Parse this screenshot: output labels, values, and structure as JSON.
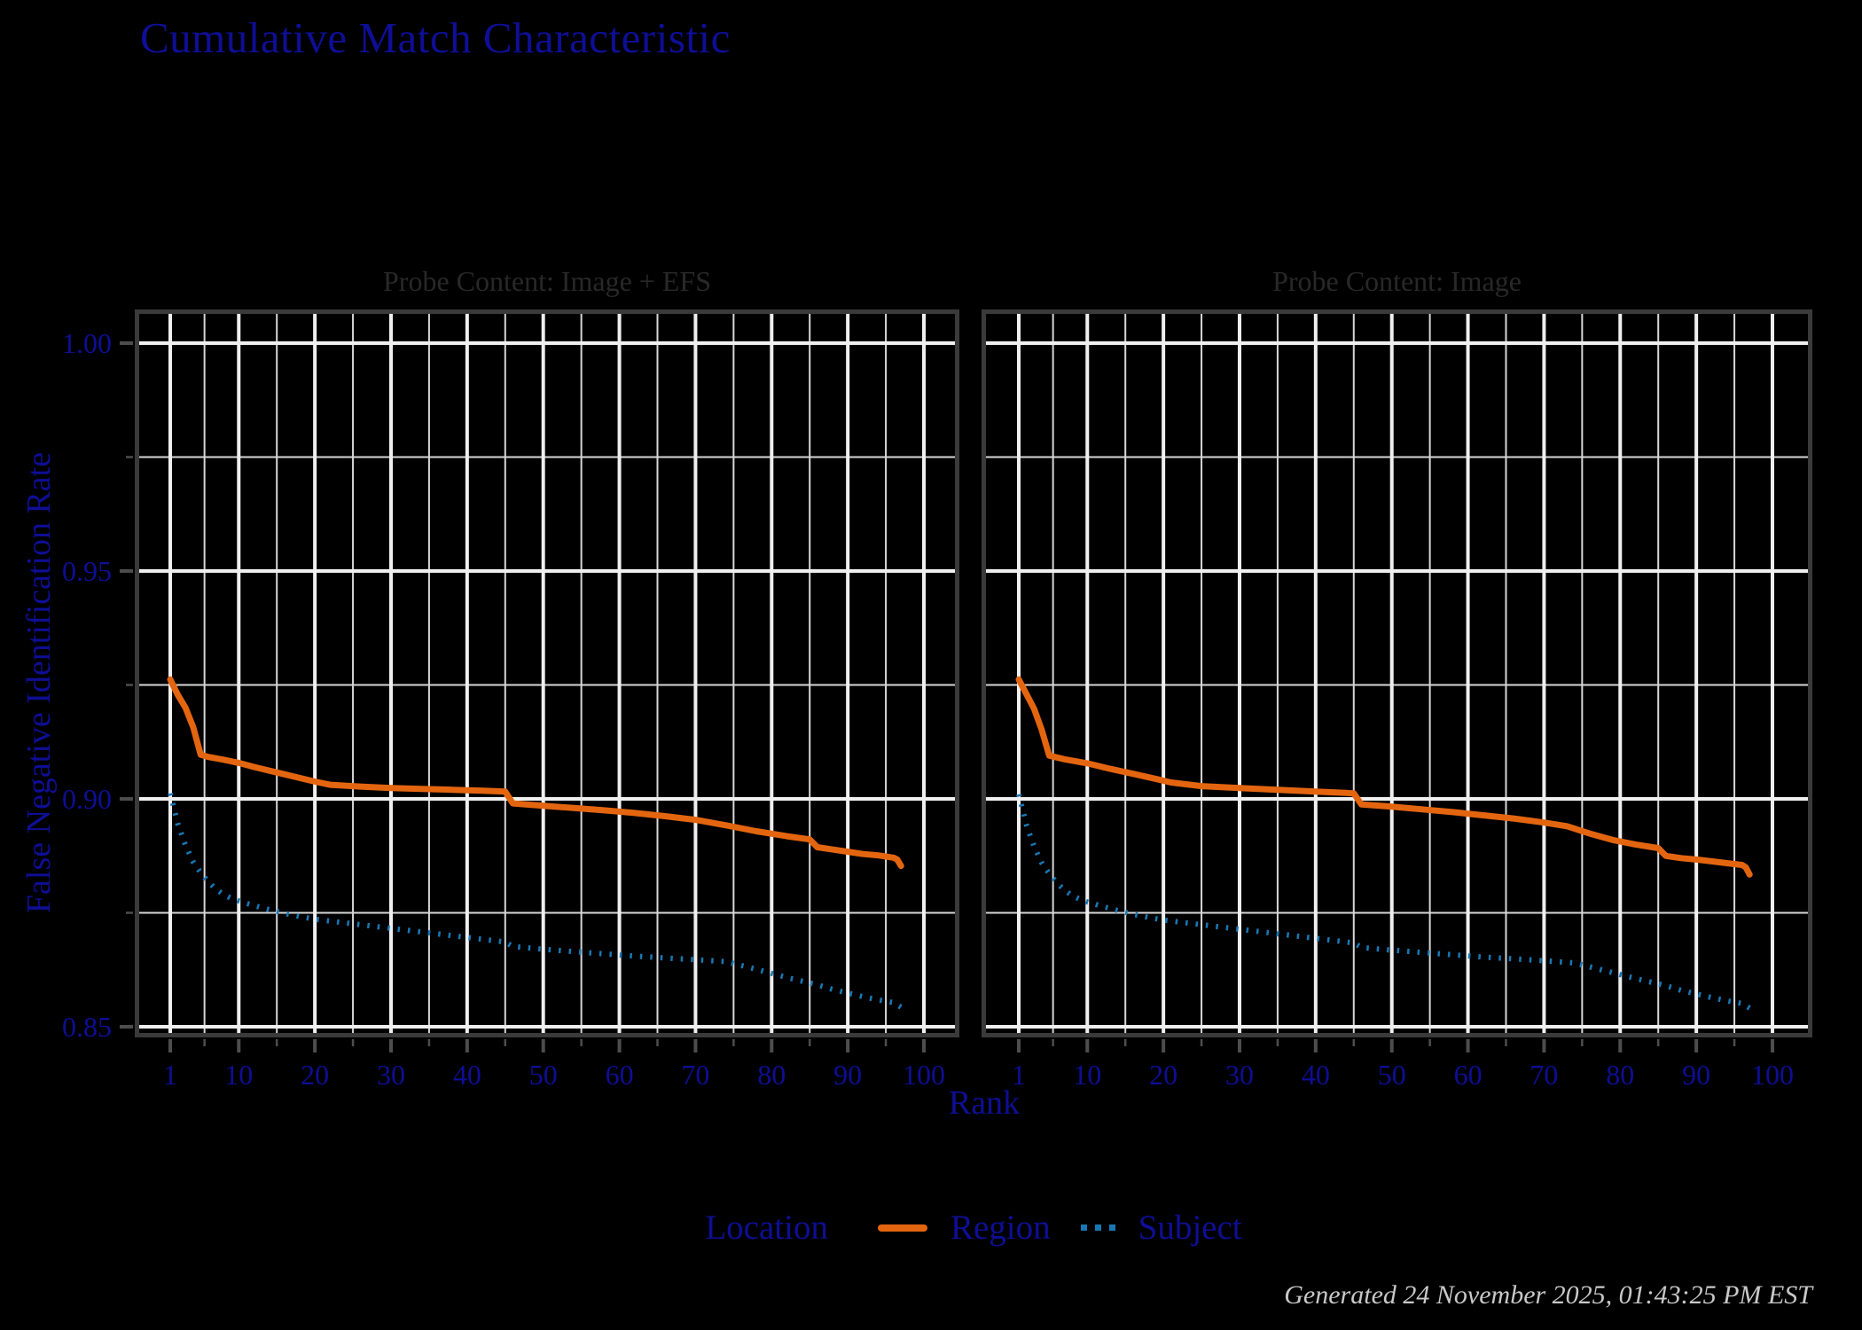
{
  "title": "Cumulative Match Characteristic",
  "footer": {
    "generated": "Generated 24 November 2025, 01:43:25 PM EST"
  },
  "legend": {
    "title": "Location",
    "entries": [
      {
        "label": "Region",
        "style": "solid",
        "color": "#E4650F"
      },
      {
        "label": "Subject",
        "style": "dotted",
        "color": "#1878B4"
      }
    ]
  },
  "colors": {
    "background": "#000000",
    "axis_text": "#0E0E96",
    "panel_title_text": "#282828",
    "grid_major": "#EFEFEF",
    "grid_minor": "#D7D7D7",
    "panel_border": "#3A3A3A",
    "tick": "#4D4D4D",
    "footer_text": "#C8C8C8",
    "region": "#E4650F",
    "subject": "#1878B4"
  },
  "chart_data": {
    "type": "line",
    "title": "Cumulative Match Characteristic",
    "xlabel": "Rank",
    "ylabel": "False Negative Identification Rate",
    "xlim": [
      1,
      100
    ],
    "ylim": [
      0.85,
      1.0
    ],
    "grid": true,
    "legend_position": "bottom",
    "x_major_ticks": [
      1,
      10,
      20,
      30,
      40,
      50,
      60,
      70,
      80,
      90,
      100
    ],
    "x_major_tick_labels": [
      "1",
      "10",
      "20",
      "30",
      "40",
      "50",
      "60",
      "70",
      "80",
      "90",
      "100"
    ],
    "x_minor_ticks": [
      5.5,
      15,
      25,
      35,
      45,
      55,
      65,
      75,
      85,
      95
    ],
    "y_major_ticks": [
      0.85,
      0.9,
      0.95,
      1.0
    ],
    "y_major_tick_labels": [
      "0.85",
      "0.90",
      "0.95",
      "1.00"
    ],
    "y_minor_ticks": [
      0.875,
      0.925,
      0.975
    ],
    "panels": [
      {
        "title": "Probe Content: Image + EFS",
        "series": [
          {
            "name": "Region",
            "style": "solid",
            "color": "#E4650F",
            "points": [
              [
                1,
                0.9262
              ],
              [
                2,
                0.9228
              ],
              [
                3,
                0.92
              ],
              [
                4,
                0.9158
              ],
              [
                5,
                0.9097
              ],
              [
                6,
                0.9092
              ],
              [
                8,
                0.9086
              ],
              [
                10,
                0.9079
              ],
              [
                12,
                0.907
              ],
              [
                15,
                0.9058
              ],
              [
                18,
                0.9046
              ],
              [
                20,
                0.9038
              ],
              [
                22,
                0.9031
              ],
              [
                26,
                0.9027
              ],
              [
                30,
                0.9024
              ],
              [
                34,
                0.9022
              ],
              [
                38,
                0.902
              ],
              [
                42,
                0.9018
              ],
              [
                45,
                0.9016
              ],
              [
                46,
                0.899
              ],
              [
                50,
                0.8985
              ],
              [
                54,
                0.898
              ],
              [
                58,
                0.8975
              ],
              [
                62,
                0.8969
              ],
              [
                66,
                0.8962
              ],
              [
                70,
                0.8954
              ],
              [
                74,
                0.8942
              ],
              [
                78,
                0.8929
              ],
              [
                82,
                0.8918
              ],
              [
                85,
                0.8911
              ],
              [
                86,
                0.8894
              ],
              [
                88,
                0.8889
              ],
              [
                90,
                0.8884
              ],
              [
                92,
                0.8879
              ],
              [
                94,
                0.8876
              ],
              [
                96,
                0.8871
              ],
              [
                96.5,
                0.8867
              ],
              [
                97,
                0.8853
              ]
            ]
          },
          {
            "name": "Subject",
            "style": "dotted",
            "color": "#1878B4",
            "points": [
              [
                1,
                0.9012
              ],
              [
                2,
                0.8945
              ],
              [
                3,
                0.8898
              ],
              [
                4,
                0.8862
              ],
              [
                5,
                0.8838
              ],
              [
                6,
                0.8818
              ],
              [
                7,
                0.8802
              ],
              [
                8,
                0.879
              ],
              [
                9,
                0.8782
              ],
              [
                10,
                0.8776
              ],
              [
                12,
                0.8766
              ],
              [
                14,
                0.8757
              ],
              [
                16,
                0.8749
              ],
              [
                18,
                0.8742
              ],
              [
                20,
                0.8736
              ],
              [
                23,
                0.873
              ],
              [
                26,
                0.8724
              ],
              [
                30,
                0.8716
              ],
              [
                34,
                0.8708
              ],
              [
                38,
                0.87
              ],
              [
                42,
                0.8692
              ],
              [
                45,
                0.8686
              ],
              [
                46,
                0.8676
              ],
              [
                50,
                0.867
              ],
              [
                54,
                0.8665
              ],
              [
                58,
                0.866
              ],
              [
                62,
                0.8655
              ],
              [
                66,
                0.8651
              ],
              [
                70,
                0.8647
              ],
              [
                74,
                0.8643
              ],
              [
                78,
                0.8626
              ],
              [
                82,
                0.8608
              ],
              [
                86,
                0.8592
              ],
              [
                88,
                0.8582
              ],
              [
                90,
                0.8574
              ],
              [
                92,
                0.8566
              ],
              [
                94,
                0.8559
              ],
              [
                96,
                0.8553
              ],
              [
                97,
                0.8543
              ]
            ]
          }
        ]
      },
      {
        "title": "Probe Content: Image",
        "series": [
          {
            "name": "Region",
            "style": "solid",
            "color": "#E4650F",
            "points": [
              [
                1,
                0.9262
              ],
              [
                2,
                0.923
              ],
              [
                3,
                0.9198
              ],
              [
                4,
                0.9152
              ],
              [
                5,
                0.9095
              ],
              [
                7,
                0.9087
              ],
              [
                10,
                0.9078
              ],
              [
                13,
                0.9066
              ],
              [
                16,
                0.9055
              ],
              [
                19,
                0.9044
              ],
              [
                21,
                0.9036
              ],
              [
                25,
                0.9028
              ],
              [
                30,
                0.9024
              ],
              [
                35,
                0.902
              ],
              [
                40,
                0.9016
              ],
              [
                44,
                0.9013
              ],
              [
                45,
                0.9012
              ],
              [
                46,
                0.8988
              ],
              [
                50,
                0.8983
              ],
              [
                54,
                0.8977
              ],
              [
                58,
                0.8971
              ],
              [
                62,
                0.8964
              ],
              [
                66,
                0.8957
              ],
              [
                70,
                0.8948
              ],
              [
                73,
                0.894
              ],
              [
                76,
                0.8924
              ],
              [
                79,
                0.891
              ],
              [
                82,
                0.89
              ],
              [
                85,
                0.8892
              ],
              [
                86,
                0.8875
              ],
              [
                88,
                0.887
              ],
              [
                90,
                0.8867
              ],
              [
                92,
                0.8863
              ],
              [
                94,
                0.8859
              ],
              [
                96,
                0.8855
              ],
              [
                96.5,
                0.885
              ],
              [
                97,
                0.8834
              ]
            ]
          },
          {
            "name": "Subject",
            "style": "dotted",
            "color": "#1878B4",
            "points": [
              [
                1,
                0.901
              ],
              [
                2,
                0.8943
              ],
              [
                3,
                0.8896
              ],
              [
                4,
                0.886
              ],
              [
                5,
                0.8836
              ],
              [
                6,
                0.8816
              ],
              [
                7,
                0.88
              ],
              [
                8,
                0.8788
              ],
              [
                9,
                0.878
              ],
              [
                10,
                0.8774
              ],
              [
                12,
                0.8764
              ],
              [
                14,
                0.8755
              ],
              [
                16,
                0.8747
              ],
              [
                18,
                0.874
              ],
              [
                20,
                0.8734
              ],
              [
                23,
                0.8728
              ],
              [
                26,
                0.8722
              ],
              [
                30,
                0.8714
              ],
              [
                34,
                0.8706
              ],
              [
                38,
                0.8698
              ],
              [
                42,
                0.869
              ],
              [
                45,
                0.8684
              ],
              [
                46,
                0.8674
              ],
              [
                50,
                0.8668
              ],
              [
                54,
                0.8663
              ],
              [
                58,
                0.8658
              ],
              [
                62,
                0.8653
              ],
              [
                66,
                0.8649
              ],
              [
                70,
                0.8645
              ],
              [
                74,
                0.864
              ],
              [
                78,
                0.8623
              ],
              [
                82,
                0.8606
              ],
              [
                86,
                0.859
              ],
              [
                88,
                0.858
              ],
              [
                90,
                0.8572
              ],
              [
                92,
                0.8564
              ],
              [
                94,
                0.8557
              ],
              [
                96,
                0.8551
              ],
              [
                97,
                0.8541
              ]
            ]
          }
        ]
      }
    ]
  }
}
